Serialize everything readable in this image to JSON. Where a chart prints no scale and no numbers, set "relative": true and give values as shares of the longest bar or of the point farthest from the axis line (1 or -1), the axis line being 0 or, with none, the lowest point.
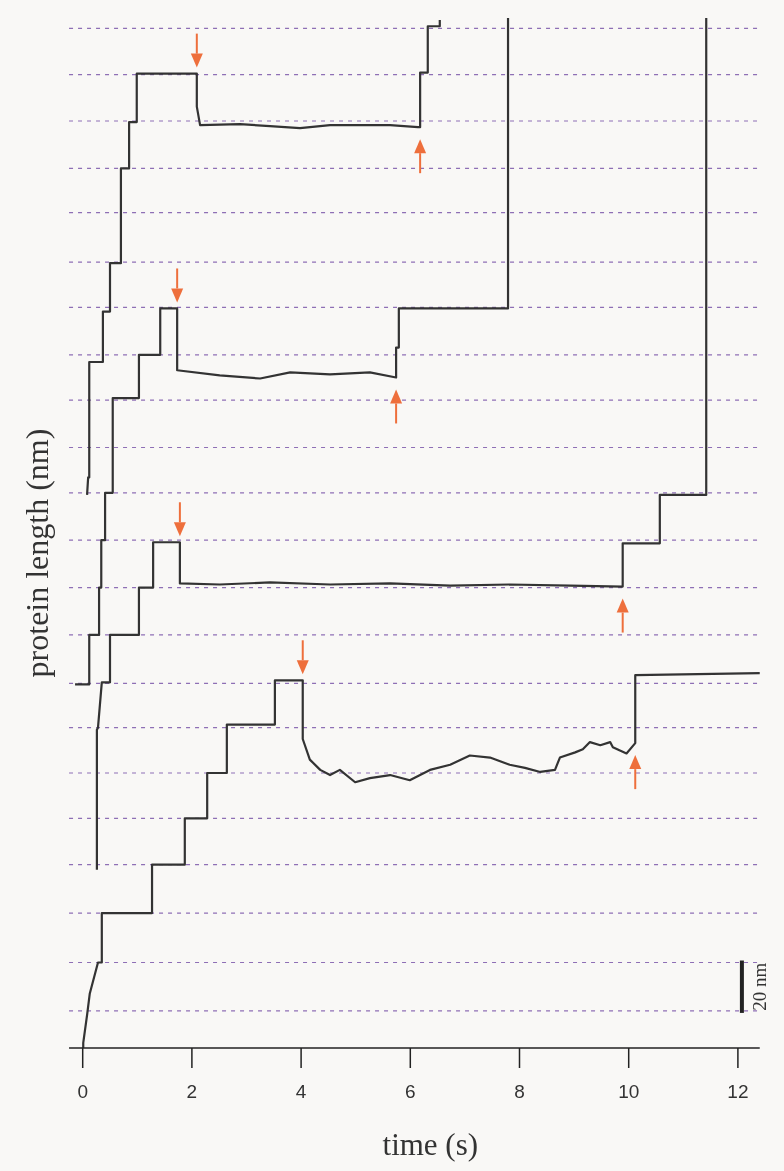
{
  "chart_data": {
    "type": "line",
    "relative": true,
    "xlabel": "time (s)",
    "ylabel": "protein length (nm)",
    "xlim": [
      -0.25,
      12.4
    ],
    "xticks": [
      0,
      2,
      4,
      6,
      8,
      10,
      12
    ],
    "marker": "none",
    "line_style": "solid",
    "annotations": [
      "20 nm"
    ],
    "ref_lines": [
      {
        "axis": "y",
        "value": 0.036,
        "color": "#8e6fb5",
        "line_style": "dashed"
      },
      {
        "axis": "y",
        "value": 0.083,
        "color": "#8e6fb5",
        "line_style": "dashed"
      },
      {
        "axis": "y",
        "value": 0.131,
        "color": "#8e6fb5",
        "line_style": "dashed"
      },
      {
        "axis": "y",
        "value": 0.178,
        "color": "#8e6fb5",
        "line_style": "dashed"
      },
      {
        "axis": "y",
        "value": 0.223,
        "color": "#8e6fb5",
        "line_style": "dashed"
      },
      {
        "axis": "y",
        "value": 0.267,
        "color": "#8e6fb5",
        "line_style": "dashed"
      },
      {
        "axis": "y",
        "value": 0.311,
        "color": "#8e6fb5",
        "line_style": "dashed"
      },
      {
        "axis": "y",
        "value": 0.354,
        "color": "#8e6fb5",
        "line_style": "dashed"
      },
      {
        "axis": "y",
        "value": 0.401,
        "color": "#8e6fb5",
        "line_style": "dashed"
      },
      {
        "axis": "y",
        "value": 0.447,
        "color": "#8e6fb5",
        "line_style": "dashed"
      },
      {
        "axis": "y",
        "value": 0.493,
        "color": "#8e6fb5",
        "line_style": "dashed"
      },
      {
        "axis": "y",
        "value": 0.539,
        "color": "#8e6fb5",
        "line_style": "dashed"
      },
      {
        "axis": "y",
        "value": 0.583,
        "color": "#8e6fb5",
        "line_style": "dashed"
      },
      {
        "axis": "y",
        "value": 0.629,
        "color": "#8e6fb5",
        "line_style": "dashed"
      },
      {
        "axis": "y",
        "value": 0.673,
        "color": "#8e6fb5",
        "line_style": "dashed"
      },
      {
        "axis": "y",
        "value": 0.719,
        "color": "#8e6fb5",
        "line_style": "dashed"
      },
      {
        "axis": "y",
        "value": 0.763,
        "color": "#8e6fb5",
        "line_style": "dashed"
      },
      {
        "axis": "y",
        "value": 0.811,
        "color": "#8e6fb5",
        "line_style": "dashed"
      },
      {
        "axis": "y",
        "value": 0.854,
        "color": "#8e6fb5",
        "line_style": "dashed"
      },
      {
        "axis": "y",
        "value": 0.9,
        "color": "#8e6fb5",
        "line_style": "dashed"
      },
      {
        "axis": "y",
        "value": 0.945,
        "color": "#8e6fb5",
        "line_style": "dashed"
      },
      {
        "axis": "y",
        "value": 0.99,
        "color": "#8e6fb5",
        "line_style": "dashed"
      }
    ],
    "series": [
      {
        "color": "#333333",
        "x": [
          0.01,
          0.01,
          0.08,
          0.13,
          0.28,
          0.35,
          0.35,
          1.27,
          1.27,
          1.87,
          1.87,
          2.28,
          2.28,
          2.64,
          2.64,
          3.52,
          3.52,
          4.03,
          4.03,
          4.16,
          4.35,
          4.53,
          4.71,
          4.99,
          5.26,
          5.63,
          5.99,
          6.36,
          6.73,
          7.09,
          7.46,
          7.82,
          8.1,
          8.38,
          8.65,
          8.74,
          9.02,
          9.16,
          9.29,
          9.48,
          9.66,
          9.71,
          9.83,
          9.96,
          10.12,
          10.12,
          12.4
        ],
        "values": [
          0,
          0.005,
          0.032,
          0.053,
          0.083,
          0.083,
          0.131,
          0.131,
          0.178,
          0.178,
          0.223,
          0.223,
          0.267,
          0.267,
          0.314,
          0.314,
          0.357,
          0.357,
          0.3,
          0.28,
          0.27,
          0.265,
          0.27,
          0.258,
          0.262,
          0.265,
          0.26,
          0.27,
          0.275,
          0.284,
          0.282,
          0.275,
          0.272,
          0.268,
          0.27,
          0.282,
          0.287,
          0.29,
          0.297,
          0.294,
          0.297,
          0.292,
          0.289,
          0.286,
          0.296,
          0.362,
          0.364
        ]
      },
      {
        "color": "#333333",
        "x": [
          0.26,
          0.26,
          0.28,
          0.35,
          0.35,
          0.5,
          0.5,
          1.03,
          1.03,
          1.29,
          1.29,
          1.78,
          1.78,
          2.51,
          3.43,
          4.53,
          5.63,
          6.73,
          7.82,
          8.93,
          9.89,
          9.89,
          10.57,
          10.57,
          11.42,
          11.42
        ],
        "values": [
          0.173,
          0.309,
          0.311,
          0.355,
          0.355,
          0.355,
          0.401,
          0.401,
          0.447,
          0.447,
          0.491,
          0.491,
          0.451,
          0.45,
          0.452,
          0.45,
          0.451,
          0.449,
          0.45,
          0.449,
          0.448,
          0.49,
          0.49,
          0.537,
          0.537,
          1
        ]
      },
      {
        "color": "#333333",
        "x": [
          -0.14,
          0.12,
          0.12,
          0.3,
          0.3,
          0.34,
          0.34,
          0.41,
          0.41,
          0.55,
          0.55,
          1.03,
          1.03,
          1.42,
          1.42,
          1.73,
          1.73,
          2.51,
          3.25,
          3.8,
          4.53,
          5.26,
          5.74,
          5.74,
          5.79,
          5.79,
          7.79,
          7.79
        ],
        "values": [
          0.353,
          0.353,
          0.401,
          0.401,
          0.447,
          0.447,
          0.493,
          0.493,
          0.539,
          0.539,
          0.631,
          0.631,
          0.673,
          0.673,
          0.718,
          0.718,
          0.658,
          0.653,
          0.65,
          0.656,
          0.654,
          0.656,
          0.651,
          0.68,
          0.68,
          0.718,
          0.718,
          1
        ]
      },
      {
        "color": "#333333",
        "x": [
          0.08,
          0.1,
          0.12,
          0.12,
          0.37,
          0.37,
          0.5,
          0.5,
          0.7,
          0.7,
          0.85,
          0.85,
          0.99,
          0.99,
          2.09,
          2.09,
          2.15,
          2.88,
          3.43,
          3.98,
          4.53,
          5.08,
          5.63,
          6.14,
          6.18,
          6.18,
          6.32,
          6.32,
          6.54,
          6.54
        ],
        "values": [
          0.537,
          0.554,
          0.554,
          0.666,
          0.666,
          0.715,
          0.715,
          0.762,
          0.762,
          0.854,
          0.854,
          0.899,
          0.899,
          0.946,
          0.946,
          0.914,
          0.896,
          0.897,
          0.895,
          0.893,
          0.896,
          0.896,
          0.896,
          0.894,
          0.894,
          0.947,
          0.947,
          0.992,
          0.992,
          0.998
        ]
      }
    ]
  }
}
